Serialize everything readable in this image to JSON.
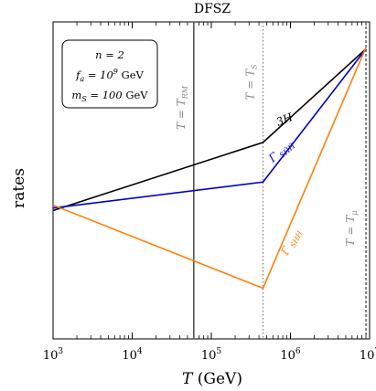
{
  "chart_data": {
    "type": "line",
    "title": "DFSZ",
    "xlabel": "T (GeV)",
    "ylabel": "rates",
    "xscale": "log",
    "xlim": [
      1000,
      10000000
    ],
    "x_tick_labels": [
      "10^3",
      "10^4",
      "10^5",
      "10^6",
      "10^7"
    ],
    "y_tick_labels": [],
    "series": [
      {
        "name": "3H",
        "color": "#000000",
        "x": [
          1000,
          450000,
          9000000
        ],
        "y": [
          0.405,
          0.62,
          0.915
        ]
      },
      {
        "name": "Γ_{SH̃H̃}",
        "color": "#0000cc",
        "x": [
          1000,
          450000,
          9000000
        ],
        "y": [
          0.413,
          0.495,
          0.915
        ]
      },
      {
        "name": "Γ_{SHH}",
        "color": "#ff7f0e",
        "x": [
          1000,
          450000,
          9000000
        ],
        "y": [
          0.422,
          0.16,
          0.92
        ]
      }
    ],
    "vlines": [
      {
        "label": "T = T_RM",
        "x": 60000,
        "style": "solid",
        "color": "#555555"
      },
      {
        "label": "T = T_S",
        "x": 450000,
        "style": "dotted",
        "color": "#888888"
      },
      {
        "label": "T = T_μ",
        "x": 9000000,
        "style": "dashed",
        "color": "#555555"
      }
    ],
    "annotations": {
      "line_3h": "3H",
      "line_shh_tilde": "Γ SH̃H̃",
      "line_shh": "Γ SHH"
    },
    "legend_box": {
      "placement": "top-left",
      "lines": [
        "n = 2",
        "f_a = 10^9 GeV",
        "m_S = 100 GeV"
      ]
    }
  }
}
